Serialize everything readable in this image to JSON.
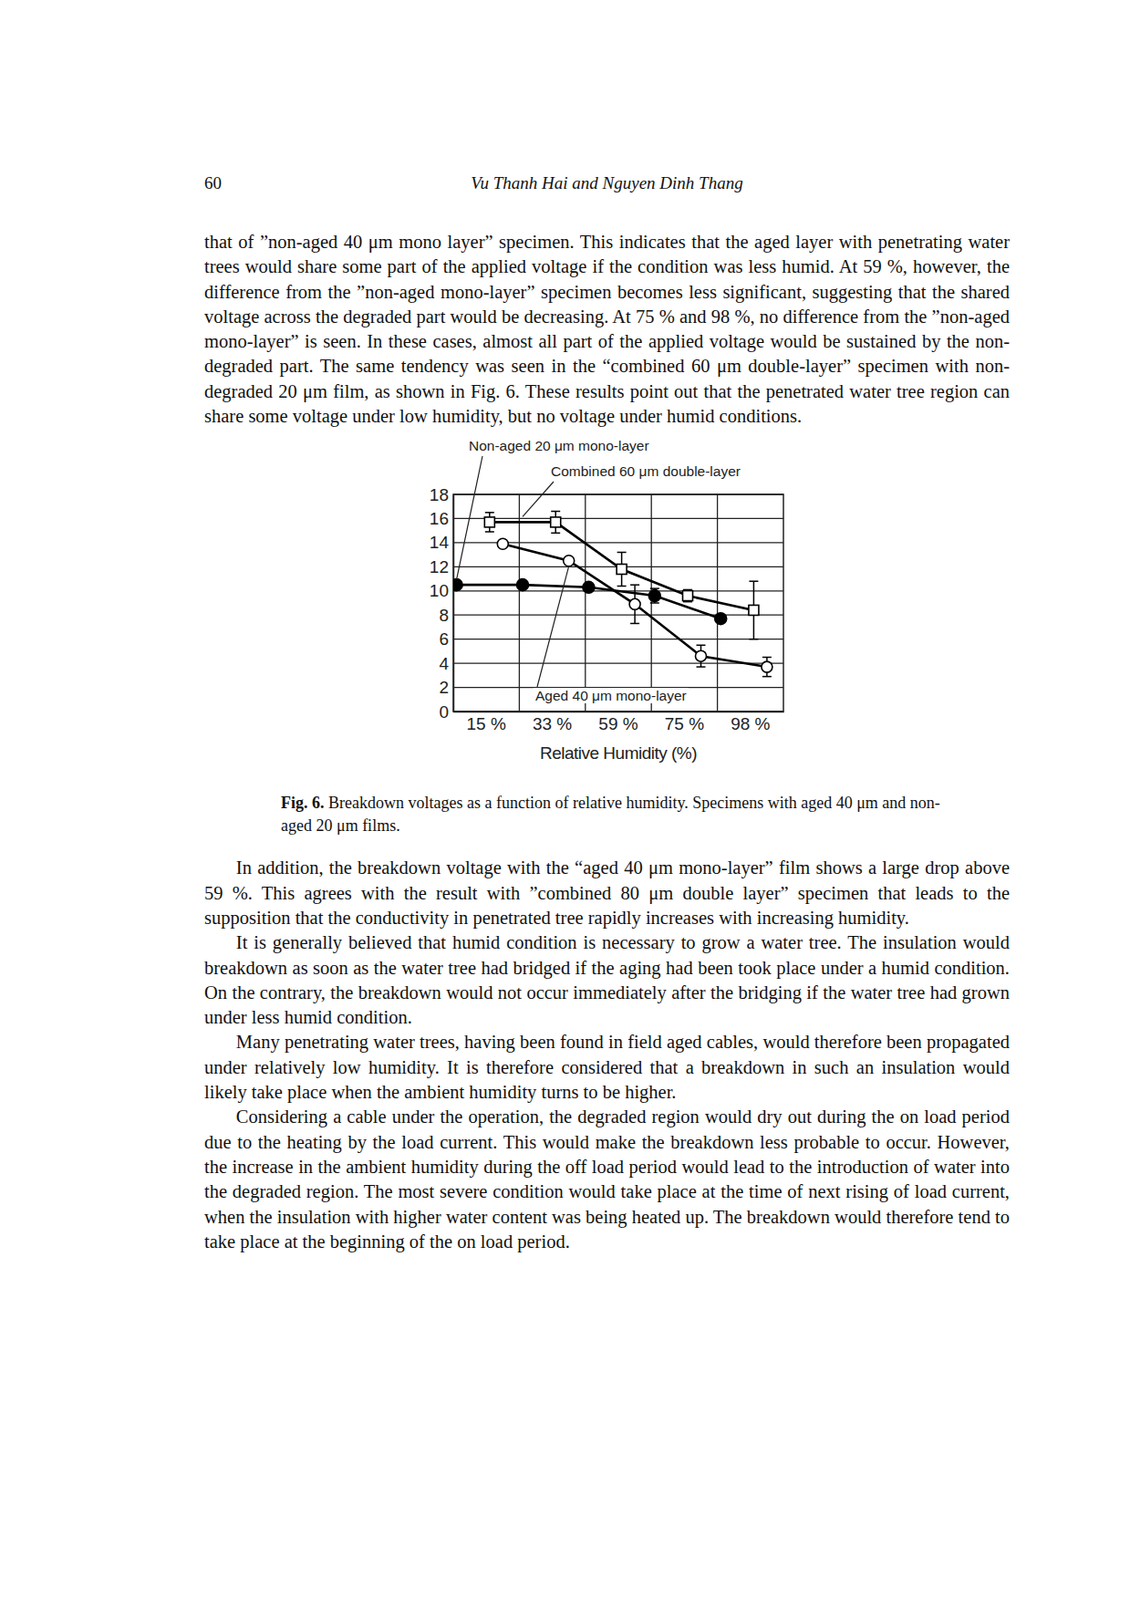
{
  "header": {
    "page_number": "60",
    "running_head": "Vu Thanh Hai and Nguyen Dinh Thang"
  },
  "paragraphs_before": [
    "that of ”non-aged 40 μm mono layer” specimen. This indicates that the aged layer with penetrating water trees would share some part of the applied voltage if the condition was less humid. At 59 %, however, the difference from the ”non-aged mono-layer” specimen becomes less significant, suggesting that the shared voltage across the degraded part would be decreasing. At 75 % and 98 %, no difference from the ”non-aged mono-layer” is seen. In these cases, almost all part of the applied voltage would be sustained by the non-degraded part. The same tendency was seen in the “combined 60 μm double-layer” specimen with non-degraded 20 μm film, as shown in Fig. 6. These results point out that the penetrated water tree region can share some voltage under low humidity, but no voltage under humid conditions."
  ],
  "chart_data": {
    "type": "line",
    "x_label": "Relative Humidity (%)",
    "categories": [
      "15 %",
      "33 %",
      "59 %",
      "75 %",
      "98 %"
    ],
    "ylim": [
      0,
      18
    ],
    "yticks": [
      0,
      2,
      4,
      6,
      8,
      10,
      12,
      14,
      16,
      18
    ],
    "grid": true,
    "series": [
      {
        "name": "Non-aged 20 μm mono-layer",
        "color": "#000000",
        "marker": "filled-circle",
        "values": [
          10.5,
          10.5,
          10.3,
          9.6,
          7.7
        ],
        "errors": [
          null,
          null,
          null,
          0.6,
          null
        ]
      },
      {
        "name": "Combined 60 μm double-layer",
        "color": "#000000",
        "marker": "square",
        "values": [
          15.7,
          15.7,
          11.8,
          9.6,
          8.4
        ],
        "errors": [
          0.8,
          0.9,
          1.4,
          0.5,
          2.4
        ]
      },
      {
        "name": "Aged 40 μm mono-layer",
        "color": "#000000",
        "marker": "circle",
        "values": [
          13.9,
          12.5,
          8.9,
          4.6,
          3.7
        ],
        "errors": [
          null,
          null,
          1.6,
          0.9,
          0.8
        ]
      }
    ]
  },
  "caption": {
    "label": "Fig. 6.",
    "text": "Breakdown voltages as a function of relative humidity. Specimens with aged 40 μm and non-aged 20 μm films."
  },
  "paragraphs_after": [
    "In addition, the breakdown voltage with the “aged 40 μm mono-layer” film shows a large drop above 59 %. This agrees with the result with ”combined 80 μm double layer” specimen that leads to the supposition that the conductivity in penetrated tree rapidly increases with increasing humidity.",
    "It is generally believed that humid condition is necessary to grow a water tree. The insulation would breakdown as soon as the water tree had bridged if the aging had been took place under a humid condition. On the contrary, the breakdown would not occur immediately after the bridging if the water tree had grown under less humid condition.",
    "Many penetrating water trees, having been found in field aged cables, would therefore been propagated under relatively low humidity. It is therefore considered that a breakdown in such an insulation would likely take place when the ambient humidity turns to be higher.",
    "Considering a cable under the operation, the degraded region would dry out during the on load period due to the heating by the load current. This would make the breakdown less probable to occur. However, the increase in the ambient humidity during the off load period would lead to the introduction of water into the degraded region. The most severe condition would take place at the time of next rising of load current, when the insulation with higher water content was being heated up. The breakdown would therefore tend to take place at the beginning of the on load period."
  ]
}
